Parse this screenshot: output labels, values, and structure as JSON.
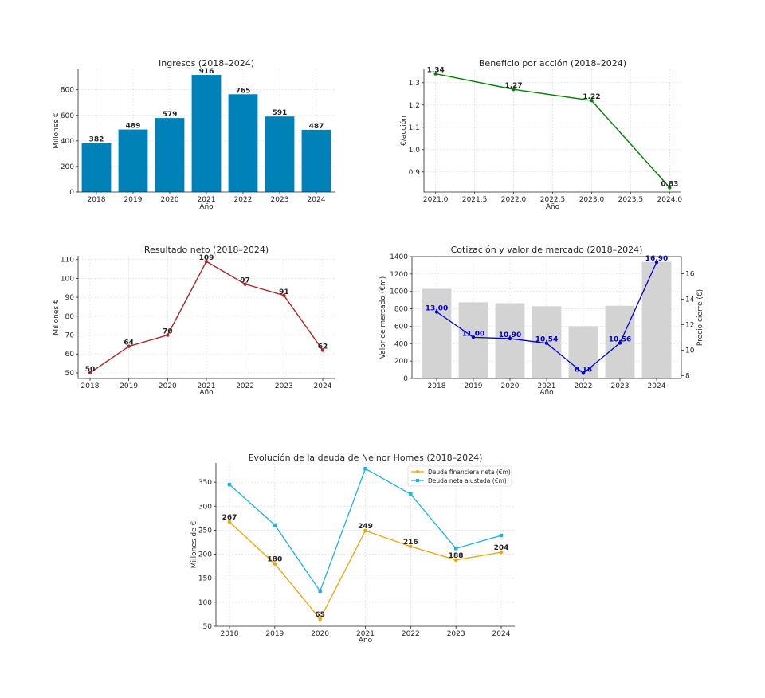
{
  "chart_data": [
    {
      "id": "ingresos",
      "type": "bar",
      "title": "Ingresos (2018–2024)",
      "xlabel": "Año",
      "ylabel": "Millones €",
      "categories": [
        "2018",
        "2019",
        "2020",
        "2021",
        "2022",
        "2023",
        "2024"
      ],
      "values": [
        382,
        489,
        579,
        916,
        765,
        591,
        487
      ],
      "ylim": [
        0,
        960
      ],
      "yticks": [
        0,
        200,
        400,
        600,
        800
      ],
      "color": "#0081b8",
      "grid": true
    },
    {
      "id": "beneficio",
      "type": "line",
      "title": "Beneficio por acción (2018–2024)",
      "xlabel": "Año",
      "ylabel": "€/acción",
      "x": [
        2021,
        2022,
        2023,
        2024
      ],
      "values": [
        1.34,
        1.27,
        1.22,
        0.83
      ],
      "labels": [
        "1.34",
        "1.27",
        "1.22",
        "0.83"
      ],
      "xlim": [
        2020.85,
        2024.15
      ],
      "ylim": [
        0.81,
        1.36
      ],
      "xticks": [
        "2021.0",
        "2021.5",
        "2022.0",
        "2022.5",
        "2023.0",
        "2023.5",
        "2024.0"
      ],
      "yticks": [
        "0.9",
        "1.0",
        "1.1",
        "1.2",
        "1.3"
      ],
      "color": "#008000",
      "grid": true
    },
    {
      "id": "resultado",
      "type": "line",
      "title": "Resultado neto (2018–2024)",
      "xlabel": "Año",
      "ylabel": "Millones €",
      "categories": [
        "2018",
        "2019",
        "2020",
        "2021",
        "2022",
        "2023",
        "2024"
      ],
      "values": [
        50,
        64,
        70,
        109,
        97,
        91,
        62
      ],
      "ylim": [
        47,
        112
      ],
      "yticks": [
        50,
        60,
        70,
        80,
        90,
        100,
        110
      ],
      "color": "#b22222",
      "grid": true
    },
    {
      "id": "cotizacion",
      "type": "bar+line",
      "title": "Cotización y valor de mercado (2018–2024)",
      "xlabel": "Año",
      "ylabel": "Valor de mercado (€m)",
      "ylabel2": "Precio cierre (€)",
      "categories": [
        "2018",
        "2019",
        "2020",
        "2021",
        "2022",
        "2023",
        "2024"
      ],
      "bar_values": [
        1030,
        875,
        865,
        830,
        600,
        835,
        1340
      ],
      "line_values": [
        13.0,
        11.0,
        10.9,
        10.54,
        8.18,
        10.56,
        16.9
      ],
      "line_labels": [
        "13.00",
        "11.00",
        "10.90",
        "10.54",
        "8.18",
        "10.56",
        "16.90"
      ],
      "ylim": [
        0,
        1400
      ],
      "ylim2": [
        7.77,
        17.34
      ],
      "yticks": [
        0,
        200,
        400,
        600,
        800,
        1000,
        1200,
        1400
      ],
      "yticks2": [
        8,
        10,
        12,
        14,
        16
      ],
      "bar_color": "#d3d3d3",
      "line_color": "#0000cd",
      "grid": true
    },
    {
      "id": "deuda",
      "type": "line",
      "title": "Evolución de la deuda de Neinor Homes (2018–2024)",
      "xlabel": "Año",
      "ylabel": "Millones de €",
      "categories": [
        "2018",
        "2019",
        "2020",
        "2021",
        "2022",
        "2023",
        "2024"
      ],
      "ylim": [
        50,
        390
      ],
      "yticks": [
        50,
        100,
        150,
        200,
        250,
        300,
        350
      ],
      "grid": true,
      "legend_position": "top-right",
      "series": [
        {
          "name": "Deuda financiera neta (€m)",
          "values": [
            267,
            180,
            65,
            249,
            216,
            188,
            204
          ],
          "labels": [
            "267",
            "180",
            "65",
            "249",
            "216",
            "188",
            "204"
          ],
          "color": "#f5a300",
          "marker": "circle"
        },
        {
          "name": "Deuda neta ajustada (€m)",
          "values": [
            345,
            261,
            123,
            378,
            325,
            212,
            239
          ],
          "color": "#1ab2e0",
          "marker": "square"
        }
      ]
    }
  ]
}
